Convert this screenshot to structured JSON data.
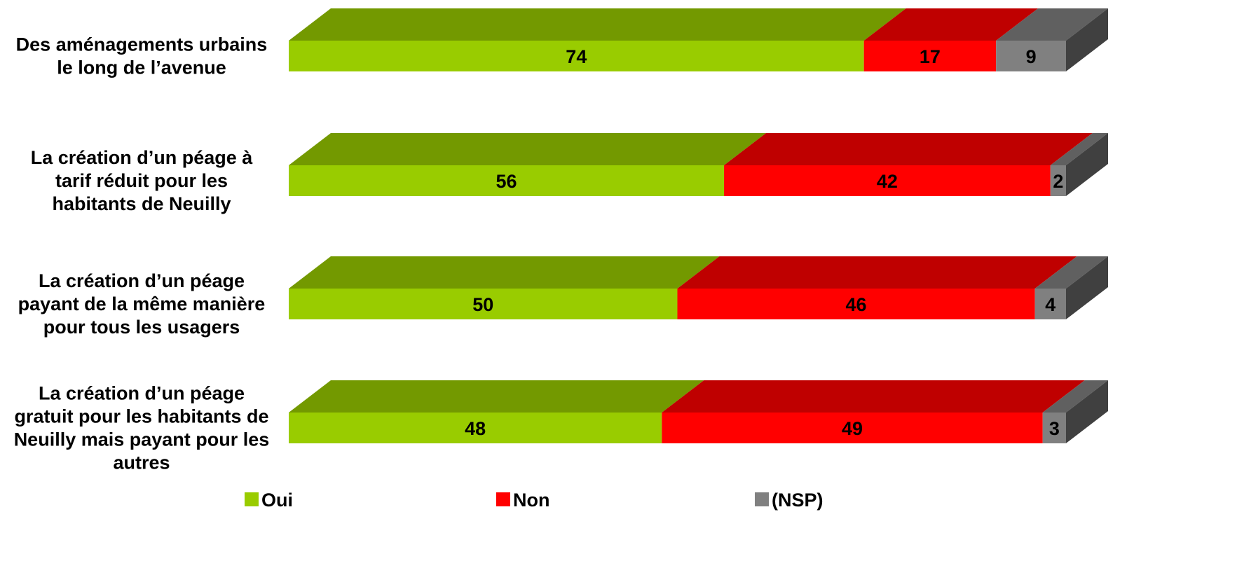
{
  "chart_data": {
    "type": "bar",
    "orientation": "horizontal",
    "stacked": "percent",
    "style": "3d",
    "categories": [
      [
        "Des aménagements urbains",
        "le long de l’avenue"
      ],
      [
        "La création d’un péage à",
        "tarif réduit pour les",
        "habitants de Neuilly"
      ],
      [
        "La création d’un péage",
        "payant de la même manière",
        "pour tous les usagers"
      ],
      [
        "La création d’un péage",
        "gratuit pour les habitants de",
        "Neuilly mais payant pour les",
        "autres"
      ]
    ],
    "series": [
      {
        "name": "Oui",
        "values": [
          74,
          56,
          50,
          48
        ],
        "color": "#99CC00",
        "top_color": "#739900",
        "side_color": "#5c7a00"
      },
      {
        "name": "Non",
        "values": [
          17,
          42,
          46,
          49
        ],
        "color": "#FF0000",
        "top_color": "#BF0000",
        "side_color": "#990000"
      },
      {
        "name": "(NSP)",
        "values": [
          9,
          2,
          4,
          3
        ],
        "color": "#808080",
        "top_color": "#606060",
        "side_color": "#404040"
      }
    ],
    "legend_position": "bottom",
    "grid": false
  }
}
